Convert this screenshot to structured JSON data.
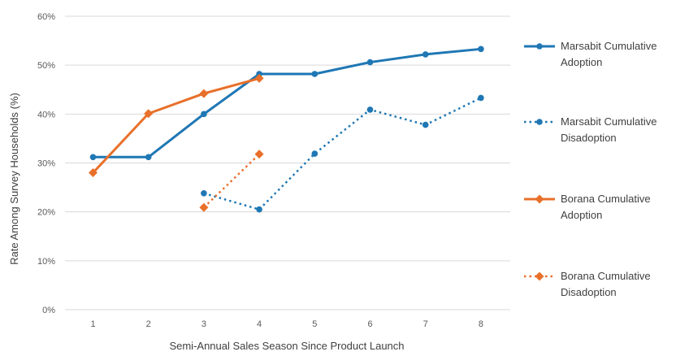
{
  "chart_data": {
    "type": "line",
    "title": "",
    "xlabel": "Semi-Annual Sales Season Since Product Launch",
    "ylabel": "Rate Among Survey Households (%)",
    "x": [
      1,
      2,
      3,
      4,
      5,
      6,
      7,
      8
    ],
    "x_tick_labels": [
      "1",
      "2",
      "3",
      "4",
      "5",
      "6",
      "7",
      "8"
    ],
    "ylim": [
      0,
      60
    ],
    "y_ticks": [
      0,
      10,
      20,
      30,
      40,
      50,
      60
    ],
    "y_tick_labels": [
      "0%",
      "10%",
      "20%",
      "30%",
      "40%",
      "50%",
      "60%"
    ],
    "grid": true,
    "legend_position": "right",
    "series": [
      {
        "name": "Marsabit Cumulative Adoption",
        "legend_lines": [
          "Marsabit Cumulative",
          "Adoption"
        ],
        "color": "#1f77b4",
        "line_style": "solid",
        "marker": "circle",
        "x": [
          1,
          2,
          3,
          4,
          5,
          6,
          7,
          8
        ],
        "values": [
          31.2,
          31.2,
          40,
          48.2,
          48.2,
          50.6,
          52.2,
          53.3
        ]
      },
      {
        "name": "Marsabit Cumulative Disadoption",
        "legend_lines": [
          "Marsabit Cumulative",
          "Disadoption"
        ],
        "color": "#1f77b4",
        "line_style": "dotted",
        "marker": "circle",
        "x": [
          3,
          4,
          5,
          6,
          7,
          8
        ],
        "values": [
          23.8,
          20.5,
          31.9,
          40.9,
          37.8,
          43.3
        ]
      },
      {
        "name": "Borana Cumulative Adoption",
        "legend_lines": [
          "Borana Cumulative",
          "Adoption"
        ],
        "color": "#e8702a",
        "line_style": "solid",
        "marker": "diamond",
        "x": [
          1,
          2,
          3,
          4
        ],
        "values": [
          28,
          40.1,
          44.2,
          47.3
        ]
      },
      {
        "name": "Borana Cumulative Disadoption",
        "legend_lines": [
          "Borana Cumulative",
          "Disadoption"
        ],
        "color": "#e8702a",
        "line_style": "dotted",
        "marker": "diamond",
        "x": [
          3,
          4
        ],
        "values": [
          20.9,
          31.8
        ]
      }
    ]
  }
}
